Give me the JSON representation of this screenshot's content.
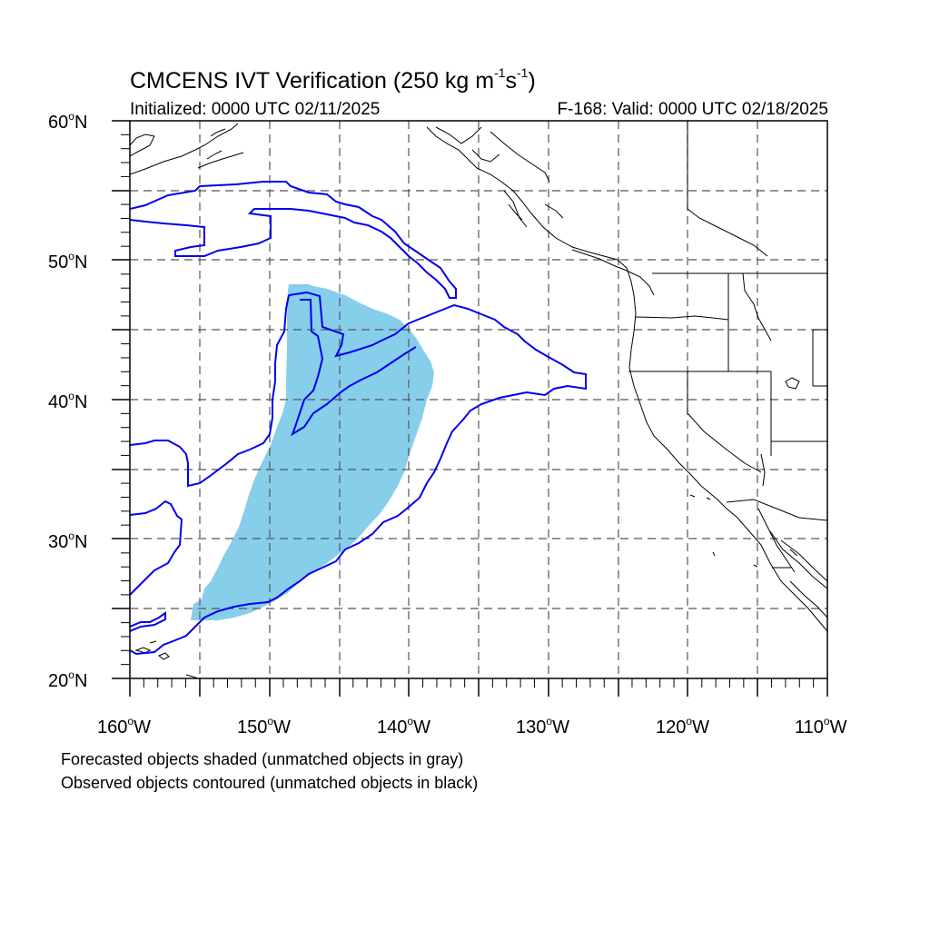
{
  "title": {
    "prefix": "CMCENS IVT Verification (250 kg m",
    "exp1": "-1",
    "mid": "s",
    "exp2": "-1",
    "suffix": ")"
  },
  "subtitle_left": "Initialized: 0000 UTC 02/11/2025",
  "subtitle_right": "F-168: Valid: 0000 UTC 02/18/2025",
  "degree_symbol": "o",
  "lat_labels": [
    {
      "deg": "60",
      "hemi": "N"
    },
    {
      "deg": "50",
      "hemi": "N"
    },
    {
      "deg": "40",
      "hemi": "N"
    },
    {
      "deg": "30",
      "hemi": "N"
    },
    {
      "deg": "20",
      "hemi": "N"
    }
  ],
  "lon_labels": [
    {
      "deg": "160",
      "hemi": "W"
    },
    {
      "deg": "150",
      "hemi": "W"
    },
    {
      "deg": "140",
      "hemi": "W"
    },
    {
      "deg": "130",
      "hemi": "W"
    },
    {
      "deg": "120",
      "hemi": "W"
    },
    {
      "deg": "110",
      "hemi": "W"
    }
  ],
  "notes": {
    "line1": "Forecasted objects shaded (unmatched objects in gray)",
    "line2": "Observed objects contoured (unmatched objects in black)"
  },
  "colors": {
    "forecast_fill": "#87ceeb",
    "observed_contour": "#0000ee",
    "coastline": "#000000",
    "grid": "#555555"
  },
  "map": {
    "projection": "cylindrical equidistant",
    "lat_range": [
      20,
      60
    ],
    "lon_range": [
      -160,
      -110
    ],
    "gridlines": "dashed every 5 degrees"
  }
}
